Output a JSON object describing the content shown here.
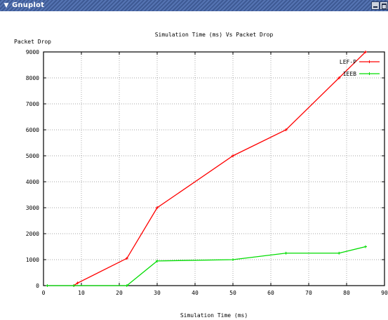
{
  "window": {
    "title": "Gnuplot",
    "menu_icon": "chevron-down-icon",
    "controls": [
      "minimize-icon",
      "maximize-icon"
    ]
  },
  "chart_data": {
    "type": "line",
    "title": "Simulation Time (ms) Vs Packet Drop",
    "xlabel": "Simulation Time (ms)",
    "ylabel": "Packet Drop",
    "xlim": [
      0,
      90
    ],
    "ylim": [
      0,
      9000
    ],
    "x_ticks": [
      0,
      10,
      20,
      30,
      40,
      50,
      60,
      70,
      80,
      90
    ],
    "y_ticks": [
      0,
      1000,
      2000,
      3000,
      4000,
      5000,
      6000,
      7000,
      8000,
      9000
    ],
    "grid": true,
    "legend_position": "top-right",
    "series": [
      {
        "name": "LEF-P",
        "color": "#ff0000",
        "x": [
          8,
          9,
          22,
          30,
          50,
          64,
          78,
          85
        ],
        "y": [
          0,
          100,
          1050,
          3000,
          5000,
          6000,
          8000,
          9000
        ]
      },
      {
        "name": "IEEB",
        "color": "#00dd00",
        "x": [
          1,
          8,
          22,
          30,
          50,
          64,
          78,
          85
        ],
        "y": [
          0,
          0,
          0,
          950,
          1000,
          1250,
          1250,
          1500
        ]
      }
    ]
  }
}
